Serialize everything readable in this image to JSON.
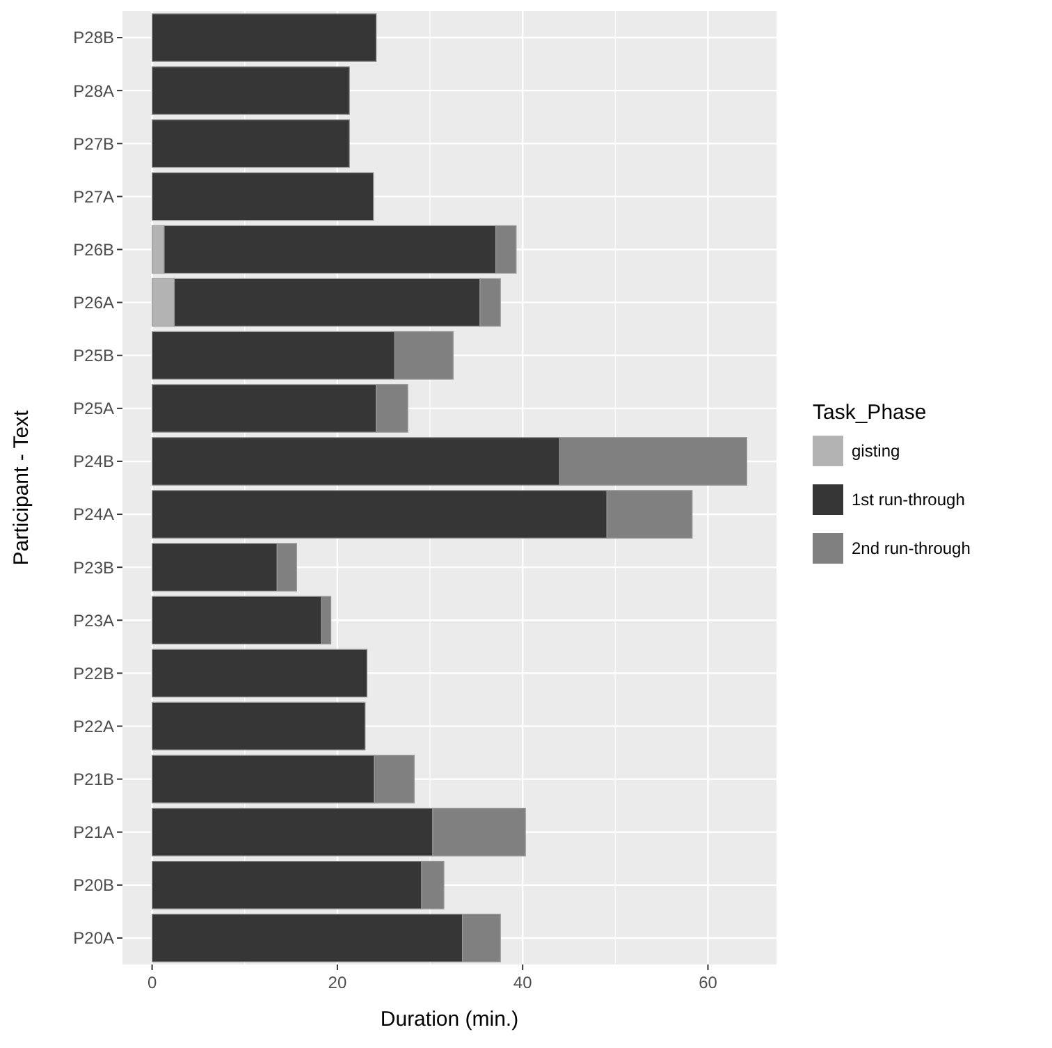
{
  "chart_data": {
    "type": "bar",
    "orientation": "horizontal",
    "stacked": true,
    "categories": [
      "P28B",
      "P28A",
      "P27B",
      "P27A",
      "P26B",
      "P26A",
      "P25B",
      "P25A",
      "P24B",
      "P24A",
      "P23B",
      "P23A",
      "P22B",
      "P22A",
      "P21B",
      "P21A",
      "P20B",
      "P20A"
    ],
    "series": [
      {
        "name": "gisting",
        "color": "#b3b3b3",
        "values": [
          null,
          null,
          null,
          null,
          1.3,
          2.4,
          null,
          null,
          null,
          null,
          null,
          null,
          null,
          null,
          null,
          null,
          null,
          null
        ]
      },
      {
        "name": "1st run-through",
        "color": "#363636",
        "values": [
          24.2,
          21.3,
          21.3,
          23.9,
          35.8,
          33.0,
          26.2,
          24.2,
          44.0,
          49.1,
          13.5,
          18.3,
          23.2,
          23.0,
          24.0,
          30.3,
          29.1,
          33.5
        ]
      },
      {
        "name": "2nd run-through",
        "color": "#808080",
        "values": [
          null,
          null,
          null,
          null,
          2.2,
          2.2,
          6.3,
          3.4,
          20.2,
          9.2,
          2.1,
          1.0,
          null,
          null,
          4.3,
          10.0,
          2.4,
          4.1
        ]
      }
    ],
    "xlim": [
      -3.2,
      67.4
    ],
    "xticks": [
      0,
      20,
      40,
      60
    ],
    "xlabel": "Duration (min.)",
    "ylabel": "Participant - Text",
    "legend_title": "Task_Phase",
    "legend": "right",
    "grid": true
  }
}
